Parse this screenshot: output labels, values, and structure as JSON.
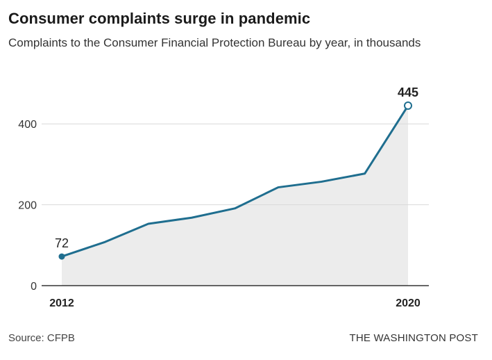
{
  "title": "Consumer complaints surge in pandemic",
  "subtitle": "Complaints to the Consumer Financial Protection Bureau by year, in thousands",
  "source": "Source: CFPB",
  "credit": "THE WASHINGTON POST",
  "colors": {
    "line": "#1f6e8f",
    "area": "#ececec",
    "grid": "#d9d9d9",
    "axis": "#333333"
  },
  "chart_data": {
    "type": "area",
    "title": "Consumer complaints surge in pandemic",
    "subtitle": "Complaints to the Consumer Financial Protection Bureau by year, in thousands",
    "x": [
      2012,
      2013,
      2014,
      2015,
      2016,
      2017,
      2018,
      2019,
      2020
    ],
    "values": [
      72,
      108,
      153,
      168,
      191,
      243,
      257,
      277,
      445
    ],
    "xlim": [
      2012,
      2020
    ],
    "ylim": [
      0,
      500
    ],
    "y_ticks": [
      0,
      200,
      400
    ],
    "y_tick_labels": [
      "0",
      "200",
      "400"
    ],
    "x_tick_labels": [
      "2012",
      "2020"
    ],
    "point_labels": [
      {
        "x": 2012,
        "text": "72"
      },
      {
        "x": 2020,
        "text": "445"
      }
    ],
    "grid": true,
    "xlabel": "",
    "ylabel": ""
  }
}
